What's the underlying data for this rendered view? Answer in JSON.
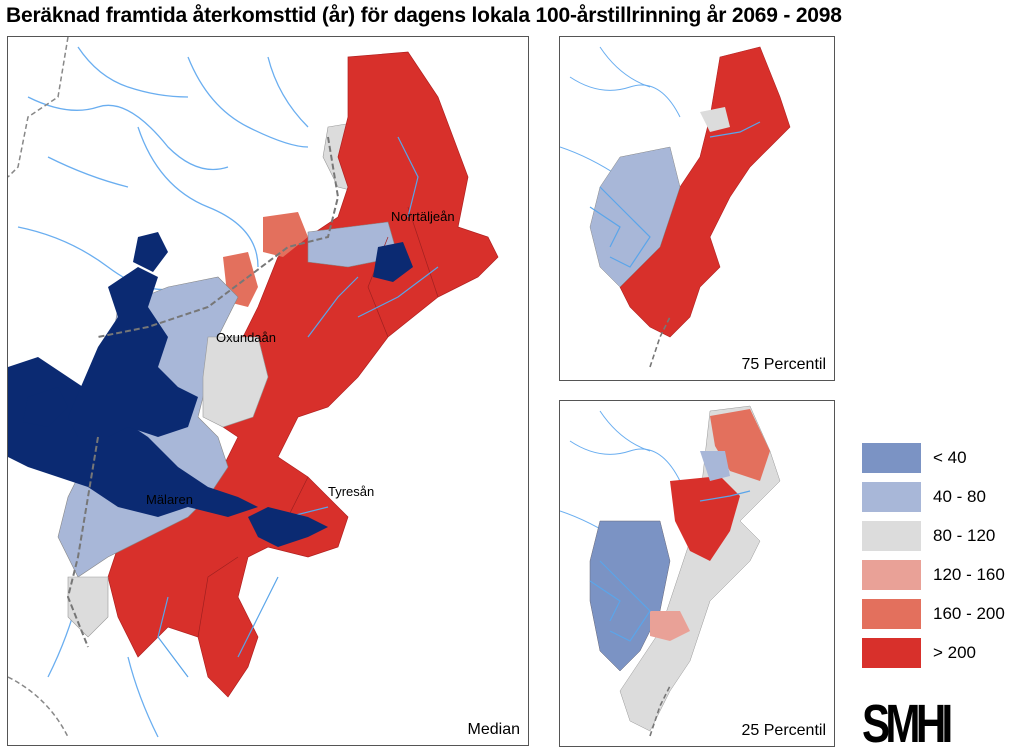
{
  "title": "Beräknad framtida återkomsttid (år) för dagens lokala 100-årstillrinning år 2069 - 2098",
  "panels": {
    "main": {
      "label": "Median"
    },
    "p75": {
      "label": "75 Percentil"
    },
    "p25": {
      "label": "25 Percentil"
    }
  },
  "places": {
    "norrtaljean": "Norrtäljeån",
    "oxundaan": "Oxundaån",
    "malaren": "Mälaren",
    "tyresan": "Tyresån"
  },
  "legend": {
    "items": [
      {
        "label": "< 40",
        "color": "#7b93c4"
      },
      {
        "label": "40 - 80",
        "color": "#a8b7d8"
      },
      {
        "label": "80 - 120",
        "color": "#dcdcdc"
      },
      {
        "label": "120 - 160",
        "color": "#e9a197"
      },
      {
        "label": "160 - 200",
        "color": "#e3705d"
      },
      {
        "label": "> 200",
        "color": "#d8302b"
      }
    ]
  },
  "logo": {
    "text": "SMHI"
  },
  "colors": {
    "water_dark": "#0b2a72",
    "river": "#5aa5ea",
    "border": "#777777"
  }
}
